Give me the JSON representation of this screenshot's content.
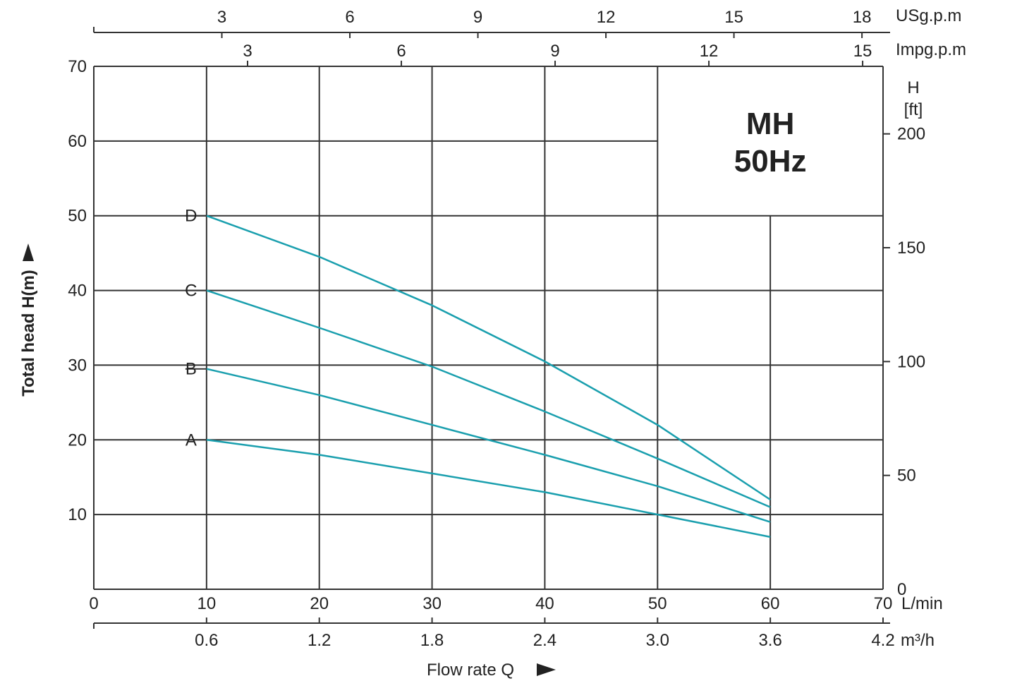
{
  "chart_data": {
    "type": "line",
    "title": "MH",
    "subtitle": "50Hz",
    "xlabel": "Flow  rate Q",
    "ylabel": "Total head H(m)",
    "xlim": [
      0,
      70
    ],
    "ylim": [
      0,
      70
    ],
    "grid": true,
    "x_unit": "L/min",
    "x_ticks": [
      "0",
      "10",
      "20",
      "30",
      "40",
      "50",
      "60",
      "70"
    ],
    "y_ticks": [
      "10",
      "20",
      "30",
      "40",
      "50",
      "60",
      "70"
    ],
    "secondary_x_m3h": {
      "unit": "m³/h",
      "ticks": [
        "0.6",
        "1.2",
        "1.8",
        "2.4",
        "3.0",
        "3.6",
        "4.2"
      ],
      "values": [
        0.6,
        1.2,
        1.8,
        2.4,
        3.0,
        3.6,
        4.2
      ]
    },
    "top_axis_usgpm": {
      "unit": "USg.p.m",
      "ticks": [
        "3",
        "6",
        "9",
        "12",
        "15",
        "18"
      ],
      "values": [
        3,
        6,
        9,
        12,
        15,
        18
      ]
    },
    "top_axis_impgpm": {
      "unit": "Impg.p.m",
      "ticks": [
        "3",
        "6",
        "9",
        "12",
        "15"
      ],
      "values": [
        3,
        6,
        9,
        12,
        15
      ]
    },
    "right_axis_ft": {
      "unit_line1": "H",
      "unit_line2": "[ft]",
      "ticks": [
        "0",
        "50",
        "100",
        "150",
        "200"
      ],
      "values": [
        0,
        50,
        100,
        150,
        200
      ]
    },
    "series": [
      {
        "name": "A",
        "x": [
          10,
          20,
          30,
          40,
          50,
          60
        ],
        "y": [
          20,
          18,
          15.5,
          13,
          10,
          7
        ]
      },
      {
        "name": "B",
        "x": [
          10,
          20,
          30,
          40,
          50,
          60
        ],
        "y": [
          29.5,
          26,
          22,
          18,
          13.8,
          9
        ]
      },
      {
        "name": "C",
        "x": [
          10,
          20,
          30,
          40,
          50,
          60
        ],
        "y": [
          40,
          35,
          29.8,
          23.8,
          17.5,
          11
        ]
      },
      {
        "name": "D",
        "x": [
          10,
          20,
          30,
          40,
          50,
          60
        ],
        "y": [
          50,
          44.5,
          38,
          30.5,
          22,
          12
        ]
      }
    ],
    "series_color": "#1a9fae"
  }
}
